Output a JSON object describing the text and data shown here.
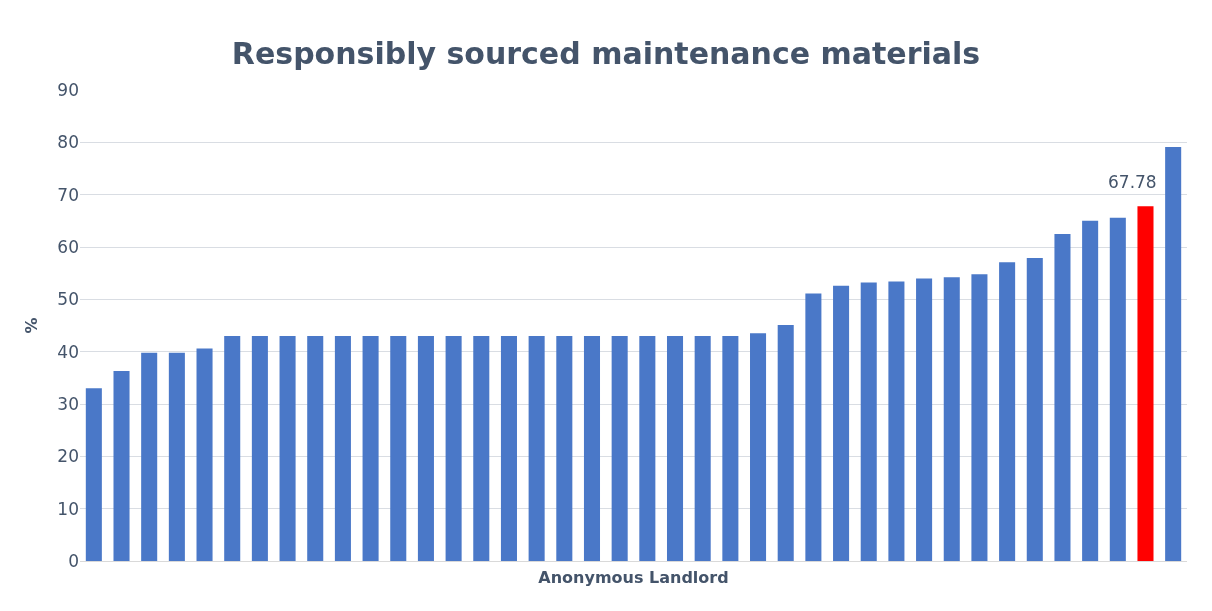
{
  "chart_data": {
    "type": "bar",
    "title": "Responsibly sourced maintenance materials",
    "xlabel": "Anonymous Landlord",
    "ylabel": "%",
    "categories": [
      null,
      null,
      null,
      null,
      null,
      null,
      null,
      null,
      null,
      null,
      null,
      null,
      null,
      null,
      null,
      null,
      null,
      null,
      null,
      null,
      null,
      null,
      null,
      null,
      null,
      null,
      null,
      null,
      null,
      null,
      null,
      null,
      null,
      null,
      null,
      null,
      null,
      null,
      null,
      null
    ],
    "values": [
      33,
      36.3,
      39.8,
      39.8,
      40.6,
      43,
      43,
      43,
      43,
      43,
      43,
      43,
      43,
      43,
      43,
      43,
      43,
      43,
      43,
      43,
      43,
      43,
      43,
      43,
      43.5,
      45.1,
      51.1,
      52.6,
      53.2,
      53.4,
      54.0,
      54.2,
      54.8,
      57.1,
      57.9,
      62.5,
      65.0,
      65.6,
      67.78,
      79.1
    ],
    "colors": [
      "#4a78c8",
      "#4a78c8",
      "#4a78c8",
      "#4a78c8",
      "#4a78c8",
      "#4a78c8",
      "#4a78c8",
      "#4a78c8",
      "#4a78c8",
      "#4a78c8",
      "#4a78c8",
      "#4a78c8",
      "#4a78c8",
      "#4a78c8",
      "#4a78c8",
      "#4a78c8",
      "#4a78c8",
      "#4a78c8",
      "#4a78c8",
      "#4a78c8",
      "#4a78c8",
      "#4a78c8",
      "#4a78c8",
      "#4a78c8",
      "#4a78c8",
      "#4a78c8",
      "#4a78c8",
      "#4a78c8",
      "#4a78c8",
      "#4a78c8",
      "#4a78c8",
      "#4a78c8",
      "#4a78c8",
      "#4a78c8",
      "#4a78c8",
      "#4a78c8",
      "#4a78c8",
      "#4a78c8",
      "#ff0000",
      "#4a78c8"
    ],
    "value_labels": [
      null,
      null,
      null,
      null,
      null,
      null,
      null,
      null,
      null,
      null,
      null,
      null,
      null,
      null,
      null,
      null,
      null,
      null,
      null,
      null,
      null,
      null,
      null,
      null,
      null,
      null,
      null,
      null,
      null,
      null,
      null,
      null,
      null,
      null,
      null,
      null,
      null,
      null,
      "67.78",
      null
    ],
    "ylim": [
      0,
      90
    ],
    "yticks": [
      0,
      10,
      20,
      30,
      40,
      50,
      60,
      70,
      80,
      90
    ],
    "grid": "y"
  }
}
